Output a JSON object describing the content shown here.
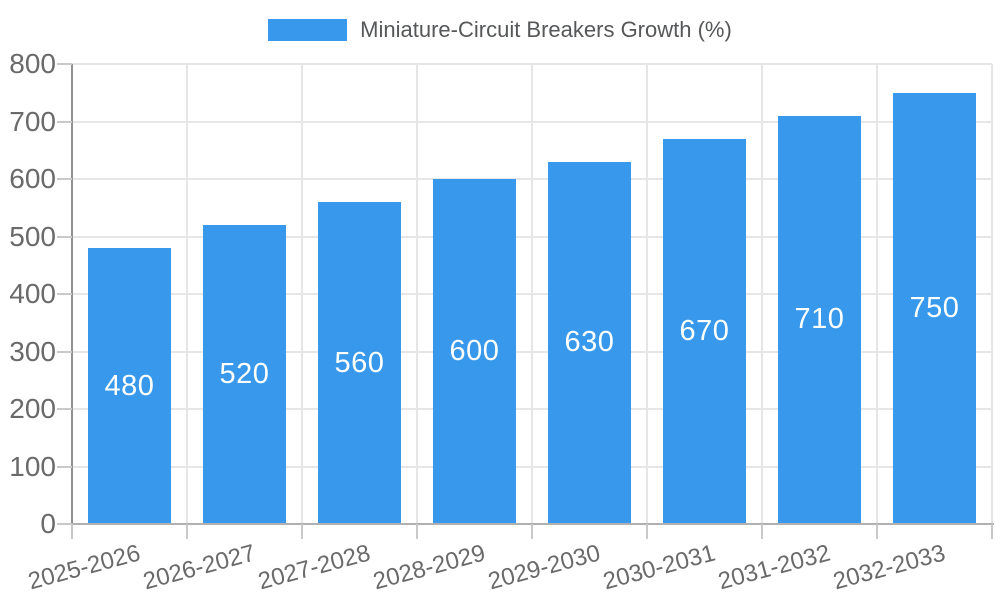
{
  "legend": {
    "position": "top",
    "items": [
      {
        "label": "Miniature-Circuit Breakers Growth (%)",
        "color": "#3899EC"
      }
    ]
  },
  "chart_data": {
    "type": "bar",
    "title": "Miniature-Circuit Breakers Growth (%)",
    "categories": [
      "2025-2026",
      "2026-2027",
      "2027-2028",
      "2028-2029",
      "2029-2030",
      "2030-2031",
      "2031-2032",
      "2032-2033"
    ],
    "values": [
      480,
      520,
      560,
      600,
      630,
      670,
      710,
      750
    ],
    "value_labels": [
      "480",
      "520",
      "560",
      "600",
      "630",
      "670",
      "710",
      "750"
    ],
    "xlabel": "",
    "ylabel": "",
    "ylim": [
      0,
      800
    ],
    "yticks": [
      0,
      100,
      200,
      300,
      400,
      500,
      600,
      700,
      800
    ],
    "ytick_labels": [
      "0",
      "100",
      "200",
      "300",
      "400",
      "500",
      "600",
      "700",
      "800"
    ],
    "grid": true,
    "legend_position": "top",
    "x_label_rotation_deg": -15,
    "colors": {
      "bar": "#3899EC",
      "value_label": "#FFFFFF",
      "tick_label": "#6A6A6A",
      "legend_text": "#555759",
      "gridline": "#E6E6E6",
      "axis_line_y": "#909090",
      "axis_line_x": "#B0B0B0",
      "tick_mark": "#C9C9C9"
    }
  }
}
